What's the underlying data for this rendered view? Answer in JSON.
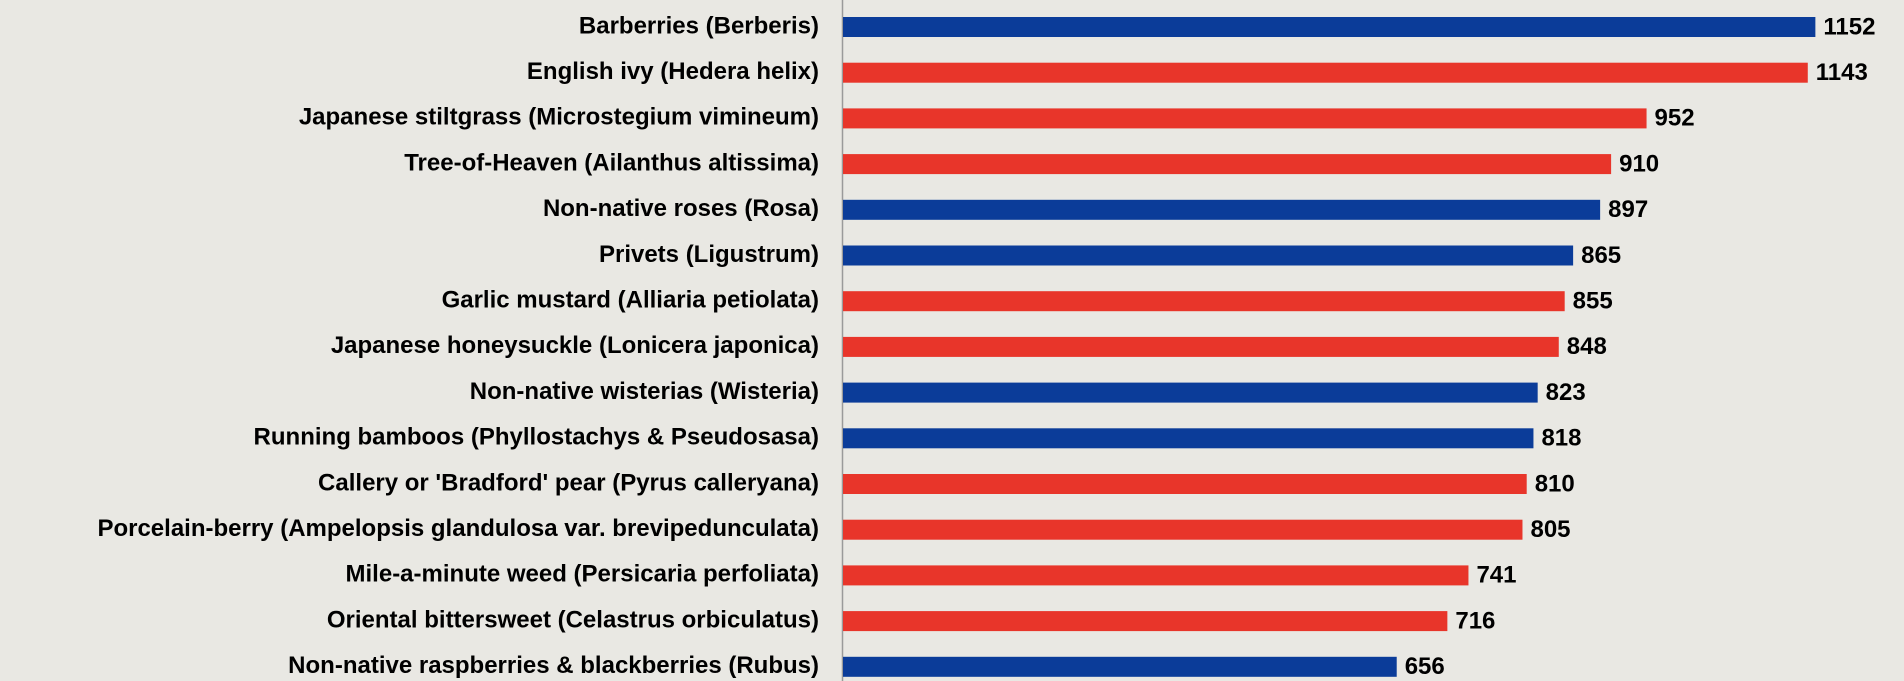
{
  "chart_data": {
    "type": "bar",
    "orientation": "horizontal",
    "categories": [
      "Barberries (Berberis)",
      "English ivy (Hedera helix)",
      "Japanese stiltgrass (Microstegium vimineum)",
      "Tree-of-Heaven (Ailanthus altissima)",
      "Non-native roses (Rosa)",
      "Privets (Ligustrum)",
      "Garlic mustard (Alliaria petiolata)",
      "Japanese honeysuckle (Lonicera japonica)",
      "Non-native wisterias (Wisteria)",
      "Running bamboos (Phyllostachys & Pseudosasa)",
      "Callery or 'Bradford' pear (Pyrus calleryana)",
      "Porcelain-berry (Ampelopsis glandulosa var. brevipedunculata)",
      "Mile-a-minute weed (Persicaria perfoliata)",
      "Oriental bittersweet (Celastrus orbiculatus)",
      "Non-native raspberries & blackberries (Rubus)"
    ],
    "values": [
      1152,
      1143,
      952,
      910,
      897,
      865,
      855,
      848,
      823,
      818,
      810,
      805,
      741,
      716,
      656
    ],
    "colors": [
      "#0b3c99",
      "#e8352a",
      "#e8352a",
      "#e8352a",
      "#0b3c99",
      "#0b3c99",
      "#e8352a",
      "#e8352a",
      "#0b3c99",
      "#0b3c99",
      "#e8352a",
      "#e8352a",
      "#e8352a",
      "#e8352a",
      "#0b3c99"
    ],
    "xlim": [
      0,
      1257
    ]
  }
}
